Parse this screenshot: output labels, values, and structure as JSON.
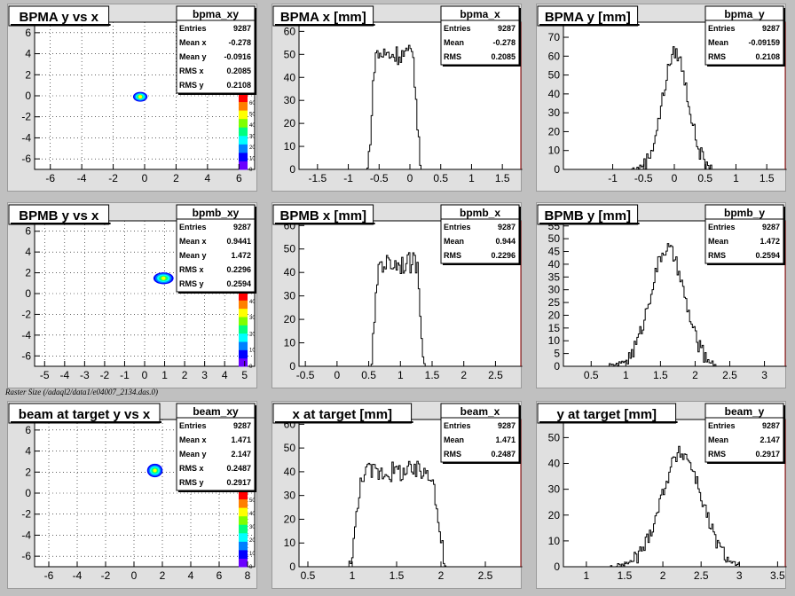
{
  "caption": "Raster Size (/adaql2/data1/e04007_2134.das.0)",
  "colors": {
    "background": "#c0c0c0",
    "panel": "#e0e0e0",
    "frame": "#ffffff",
    "hist": "#000000",
    "axis_right": "#8b0000"
  },
  "palette": [
    "#ff0000",
    "#ff7f00",
    "#ffff00",
    "#7fff00",
    "#00ff7f",
    "#00ffff",
    "#0080ff",
    "#0000ff",
    "#6a00ff"
  ],
  "chart_data": [
    {
      "type": "heatmap",
      "title": "BPMA y vs x",
      "stats": {
        "name": "bpma_xy",
        "rows": [
          [
            "Entries",
            "9287"
          ],
          [
            "Mean x",
            "-0.278"
          ],
          [
            "Mean y",
            "-0.0916"
          ],
          [
            "RMS x",
            "0.2085"
          ],
          [
            "RMS y",
            "0.2108"
          ]
        ]
      },
      "xlim": [
        -7,
        7
      ],
      "ylim": [
        -7,
        7
      ],
      "xticks": [
        -6,
        -4,
        -2,
        0,
        2,
        4,
        6
      ],
      "yticks": [
        -6,
        -4,
        -2,
        0,
        2,
        4,
        6
      ],
      "z_ticks": [
        0,
        10,
        20,
        30,
        40,
        50,
        60
      ],
      "mean": [
        -0.278,
        -0.0916
      ],
      "rms": [
        0.2085,
        0.2108
      ]
    },
    {
      "type": "bar",
      "title": "BPMA x [mm]",
      "stats": {
        "name": "bpma_x",
        "rows": [
          [
            "Entries",
            "9287"
          ],
          [
            "Mean",
            "-0.278"
          ],
          [
            "RMS",
            "0.2085"
          ]
        ]
      },
      "xlim": [
        -1.8,
        1.8
      ],
      "ylim": [
        0,
        64
      ],
      "xticks": [
        -1.5,
        -1,
        -0.5,
        0,
        0.5,
        1,
        1.5
      ],
      "yticks": [
        0,
        10,
        20,
        30,
        40,
        50,
        60
      ],
      "shape": "flat",
      "support": [
        -0.7,
        0.17
      ],
      "peak": 50,
      "noise": 9
    },
    {
      "type": "bar",
      "title": "BPMA y [mm]",
      "stats": {
        "name": "bpma_y",
        "rows": [
          [
            "Entries",
            "9287"
          ],
          [
            "Mean",
            "-0.09159"
          ],
          [
            "RMS",
            "0.2108"
          ]
        ]
      },
      "xlim": [
        -1.8,
        1.8
      ],
      "ylim": [
        0,
        78
      ],
      "xticks": [
        -1,
        -0.5,
        0,
        0.5,
        1,
        1.5
      ],
      "yticks": [
        0,
        10,
        20,
        30,
        40,
        50,
        60,
        70
      ],
      "shape": "gauss",
      "support": [
        -0.72,
        0.6
      ],
      "peak": 62,
      "noise": 8
    },
    {
      "type": "heatmap",
      "title": "BPMB y vs x",
      "stats": {
        "name": "bpmb_xy",
        "rows": [
          [
            "Entries",
            "9287"
          ],
          [
            "Mean x",
            "0.9441"
          ],
          [
            "Mean y",
            "1.472"
          ],
          [
            "RMS x",
            "0.2296"
          ],
          [
            "RMS y",
            "0.2594"
          ]
        ]
      },
      "xlim": [
        -5.5,
        5.5
      ],
      "ylim": [
        -7,
        7
      ],
      "xticks": [
        -5,
        -4,
        -3,
        -2,
        -1,
        0,
        1,
        2,
        3,
        4,
        5
      ],
      "yticks": [
        -6,
        -4,
        -2,
        0,
        2,
        4,
        6
      ],
      "z_ticks": [
        0,
        10,
        20,
        30,
        40
      ],
      "mean": [
        0.9441,
        1.472
      ],
      "rms": [
        0.2296,
        0.2594
      ]
    },
    {
      "type": "bar",
      "title": "BPMB x [mm]",
      "stats": {
        "name": "bpmb_x",
        "rows": [
          [
            "Entries",
            "9287"
          ],
          [
            "Mean",
            "0.944"
          ],
          [
            "RMS",
            "0.2296"
          ]
        ]
      },
      "xlim": [
        -0.6,
        2.9
      ],
      "ylim": [
        0,
        62
      ],
      "xticks": [
        -0.5,
        0,
        0.5,
        1,
        1.5,
        2,
        2.5
      ],
      "yticks": [
        0,
        10,
        20,
        30,
        40,
        50,
        60
      ],
      "shape": "flat",
      "support": [
        0.52,
        1.38
      ],
      "peak": 44,
      "noise": 9
    },
    {
      "type": "bar",
      "title": "BPMB y [mm]",
      "stats": {
        "name": "bpmb_y",
        "rows": [
          [
            "Entries",
            "9287"
          ],
          [
            "Mean",
            "1.472"
          ],
          [
            "RMS",
            "0.2594"
          ]
        ]
      },
      "xlim": [
        0.1,
        3.3
      ],
      "ylim": [
        0,
        57
      ],
      "xticks": [
        0.5,
        1,
        1.5,
        2,
        2.5,
        3
      ],
      "yticks": [
        0,
        5,
        10,
        15,
        20,
        25,
        30,
        35,
        40,
        45,
        50,
        55
      ],
      "shape": "gauss",
      "support": [
        0.72,
        2.3
      ],
      "peak": 46,
      "noise": 6
    },
    {
      "type": "heatmap",
      "title": "beam at target y vs x",
      "stats": {
        "name": "beam_xy",
        "rows": [
          [
            "Entries",
            "9287"
          ],
          [
            "Mean x",
            "1.471"
          ],
          [
            "Mean y",
            "2.147"
          ],
          [
            "RMS x",
            "0.2487"
          ],
          [
            "RMS y",
            "0.2917"
          ]
        ]
      },
      "xlim": [
        -7,
        8.5
      ],
      "ylim": [
        -7,
        7
      ],
      "xticks": [
        -6,
        -4,
        -2,
        0,
        2,
        4,
        6,
        8
      ],
      "yticks": [
        -6,
        -4,
        -2,
        0,
        2,
        4,
        6
      ],
      "z_ticks": [
        0,
        10,
        20,
        30,
        40,
        50
      ],
      "mean": [
        1.471,
        2.147
      ],
      "rms": [
        0.2487,
        0.2917
      ]
    },
    {
      "type": "bar",
      "title": "x at target [mm]",
      "stats": {
        "name": "beam_x",
        "rows": [
          [
            "Entries",
            "9287"
          ],
          [
            "Mean",
            "1.471"
          ],
          [
            "RMS",
            "0.2487"
          ]
        ]
      },
      "xlim": [
        0.4,
        2.9
      ],
      "ylim": [
        0,
        62
      ],
      "xticks": [
        0.5,
        1,
        1.5,
        2,
        2.5
      ],
      "yticks": [
        0,
        10,
        20,
        30,
        40,
        50,
        60
      ],
      "shape": "flat",
      "support": [
        0.95,
        2.05
      ],
      "peak": 40,
      "noise": 9
    },
    {
      "type": "bar",
      "title": "y at target [mm]",
      "stats": {
        "name": "beam_y",
        "rows": [
          [
            "Entries",
            "9287"
          ],
          [
            "Mean",
            "2.147"
          ],
          [
            "RMS",
            "0.2917"
          ]
        ]
      },
      "xlim": [
        0.7,
        3.6
      ],
      "ylim": [
        0,
        57
      ],
      "xticks": [
        1,
        1.5,
        2,
        2.5,
        3,
        3.5
      ],
      "yticks": [
        0,
        10,
        20,
        30,
        40,
        50
      ],
      "shape": "gauss",
      "support": [
        1.3,
        3.0
      ],
      "peak": 44,
      "noise": 6
    }
  ]
}
